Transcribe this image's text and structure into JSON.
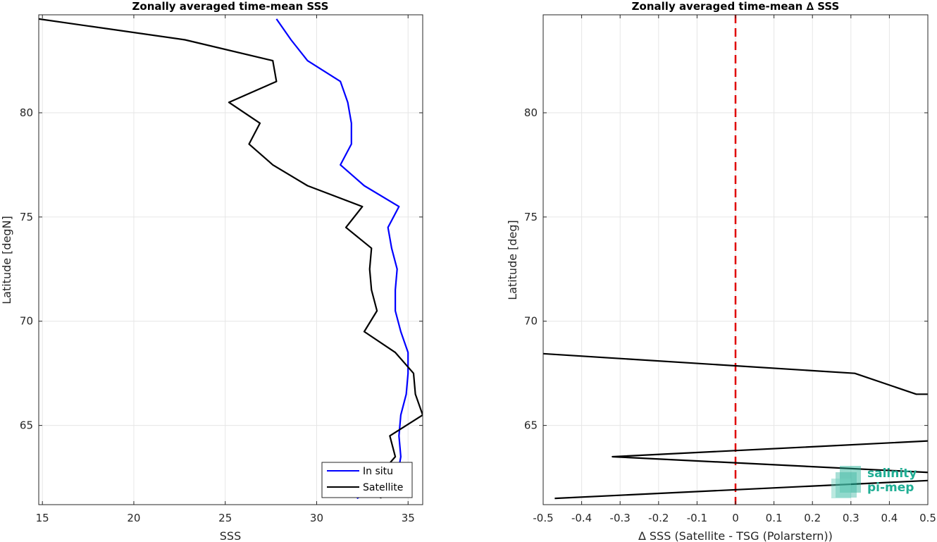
{
  "chart_data": [
    {
      "type": "line",
      "title": "Zonally averaged time-mean SSS",
      "xlabel": "SSS",
      "ylabel": "Latitude [degN]",
      "xlim": [
        14.8,
        35.8
      ],
      "ylim": [
        61.2,
        84.7
      ],
      "xticks": [
        15,
        20,
        25,
        30,
        35
      ],
      "yticks": [
        65,
        70,
        75,
        80
      ],
      "grid": true,
      "legend_position": "bottom-right",
      "series": [
        {
          "name": "In situ",
          "color": "#0000ff",
          "x": [
            27.8,
            28.6,
            29.5,
            31.3,
            31.7,
            31.9,
            31.9,
            31.3,
            32.6,
            34.5,
            33.9,
            34.1,
            34.4,
            34.3,
            34.3,
            34.6,
            35.0,
            35.0,
            34.9,
            34.6,
            34.5,
            34.6,
            34.5,
            34.2,
            32.2
          ],
          "y": [
            84.5,
            83.5,
            82.5,
            81.5,
            80.5,
            79.5,
            78.5,
            77.5,
            76.5,
            75.5,
            74.5,
            73.5,
            72.5,
            71.5,
            70.5,
            69.5,
            68.5,
            67.5,
            66.5,
            65.5,
            64.5,
            63.5,
            63.0,
            62.5,
            61.5
          ]
        },
        {
          "name": "Satellite",
          "color": "#000000",
          "x": [
            14.8,
            22.8,
            27.6,
            27.8,
            25.2,
            26.9,
            26.3,
            27.6,
            29.5,
            32.5,
            31.6,
            33.0,
            32.9,
            33.0,
            33.3,
            32.6,
            34.3,
            35.3,
            35.4,
            35.8,
            34.0,
            34.3,
            33.8,
            33.6,
            33.5
          ],
          "y": [
            84.5,
            83.5,
            82.5,
            81.5,
            80.5,
            79.5,
            78.5,
            77.5,
            76.5,
            75.5,
            74.5,
            73.5,
            72.5,
            71.5,
            70.5,
            69.5,
            68.5,
            67.5,
            66.5,
            65.5,
            64.5,
            63.5,
            63.0,
            62.5,
            61.5
          ]
        }
      ]
    },
    {
      "type": "line",
      "title": "Zonally averaged time-mean ∆ SSS",
      "xlabel": "∆ SSS (Satellite - TSG (Polarstern))",
      "ylabel": "Latitude [deg]",
      "xlim": [
        -0.5,
        0.5
      ],
      "ylim": [
        61.2,
        84.7
      ],
      "xticks": [
        -0.5,
        -0.4,
        -0.3,
        -0.2,
        -0.1,
        0,
        0.1,
        0.2,
        0.3,
        0.4,
        0.5
      ],
      "xtick_labels": [
        "-0.5",
        "-0.4",
        "-0.3",
        "-0.2",
        "-0.1",
        "0",
        "0.1",
        "0.2",
        "0.3",
        "0.4",
        "0.5"
      ],
      "yticks": [
        65,
        70,
        75,
        80
      ],
      "grid": true,
      "reference_line": {
        "x": 0,
        "color": "#e00000",
        "style": "dashed"
      },
      "series": [
        {
          "color": "#000000",
          "x": [
            -0.55,
            0.31,
            0.47,
            0.55
          ],
          "y": [
            68.5,
            67.5,
            66.5,
            66.5
          ]
        },
        {
          "color": "#000000",
          "x": [
            0.55,
            -0.32,
            0.55
          ],
          "y": [
            64.3,
            63.5,
            62.7
          ]
        },
        {
          "color": "#000000",
          "x": [
            0.55,
            -0.47
          ],
          "y": [
            62.4,
            61.5
          ]
        }
      ]
    }
  ],
  "logo": {
    "line1": "salinity",
    "line2": "pi-mep",
    "color": "#1fae94"
  }
}
